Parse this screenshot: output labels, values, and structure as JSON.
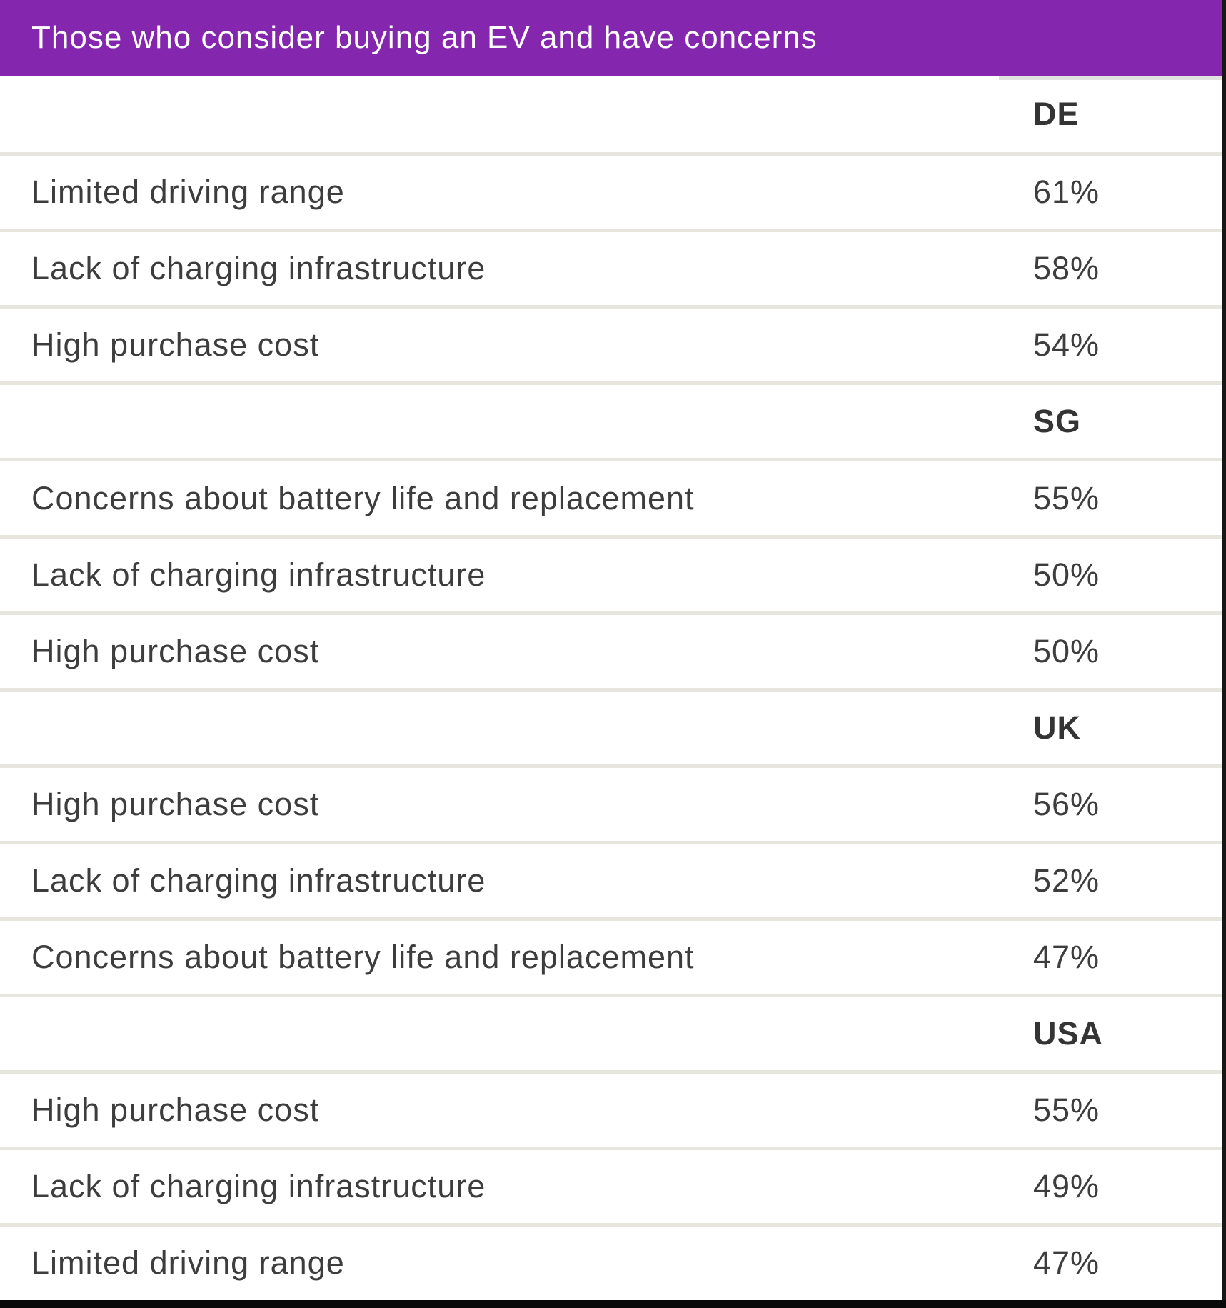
{
  "title": "Those who consider buying an EV and have concerns",
  "colors": {
    "accent_purple": "#8527ae",
    "divider_gray": "#e6e5de",
    "column_strip_gray": "#dfe2df",
    "text_dark": "#3d3d3d",
    "edge_dark": "#171717"
  },
  "sections": [
    {
      "country": "DE",
      "rows": [
        {
          "label": "Limited driving range",
          "value": "61%"
        },
        {
          "label": "Lack of charging infrastructure",
          "value": "58%"
        },
        {
          "label": "High purchase cost",
          "value": "54%"
        }
      ]
    },
    {
      "country": "SG",
      "rows": [
        {
          "label": "Concerns about battery life and replacement",
          "value": "55%"
        },
        {
          "label": "Lack of charging infrastructure",
          "value": "50%"
        },
        {
          "label": "High purchase cost",
          "value": "50%"
        }
      ]
    },
    {
      "country": "UK",
      "rows": [
        {
          "label": "High purchase cost",
          "value": "56%"
        },
        {
          "label": "Lack of charging infrastructure",
          "value": "52%"
        },
        {
          "label": "Concerns about battery life and replacement",
          "value": "47%"
        }
      ]
    },
    {
      "country": "USA",
      "rows": [
        {
          "label": "High purchase cost",
          "value": "55%"
        },
        {
          "label": "Lack of charging infrastructure",
          "value": "49%"
        },
        {
          "label": "Limited driving range",
          "value": "47%"
        }
      ]
    }
  ],
  "chart_data": {
    "type": "table",
    "title": "Those who consider buying an EV and have concerns",
    "series": [
      {
        "name": "DE",
        "categories": [
          "Limited driving range",
          "Lack of charging infrastructure",
          "High purchase cost"
        ],
        "values": [
          61,
          58,
          54
        ]
      },
      {
        "name": "SG",
        "categories": [
          "Concerns about battery life and replacement",
          "Lack of charging infrastructure",
          "High purchase cost"
        ],
        "values": [
          55,
          50,
          50
        ]
      },
      {
        "name": "UK",
        "categories": [
          "High purchase cost",
          "Lack of charging infrastructure",
          "Concerns about battery life and replacement"
        ],
        "values": [
          56,
          52,
          47
        ]
      },
      {
        "name": "USA",
        "categories": [
          "High purchase cost",
          "Lack of charging infrastructure",
          "Limited driving range"
        ],
        "values": [
          55,
          49,
          47
        ]
      }
    ],
    "unit": "%",
    "layout": "single value column, country group headers in value column, grid rows on"
  }
}
